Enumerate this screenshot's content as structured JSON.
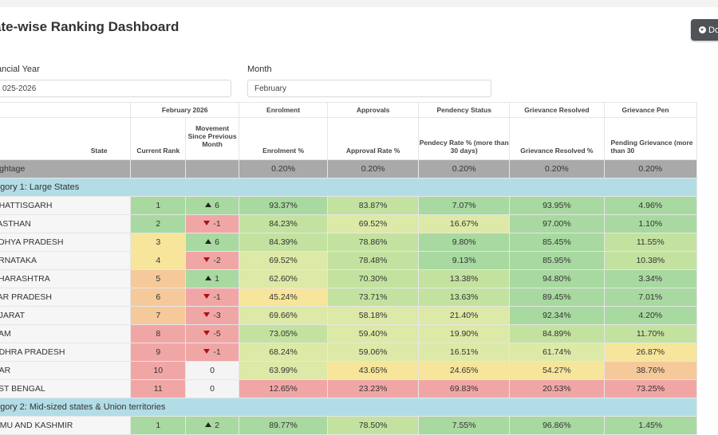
{
  "page": {
    "title": "ate-wise Ranking Dashboard",
    "download_label": "Do"
  },
  "filters": {
    "financial_year": {
      "label": "ancial Year",
      "value": "025-2026"
    },
    "month": {
      "label": "Month",
      "value": "February"
    }
  },
  "table": {
    "group_headers": [
      "February 2026",
      "Enrolment",
      "Approvals",
      "Pendency Status",
      "Grievance Resolved",
      "Grievance Pen"
    ],
    "columns": [
      "State",
      "Current Rank",
      "Movement Since Previous Month",
      "Enrolment %",
      "Approval Rate %",
      "Pendecy Rate % (more than 30 days)",
      "Grievance Resolved %",
      "Pending Grievance (more than 30"
    ],
    "weightage": {
      "label": "eightage",
      "values": [
        "0.20%",
        "0.20%",
        "0.20%",
        "0.20%",
        "0.20%"
      ]
    },
    "categories": [
      {
        "label": "tegory 1: Large States",
        "rows": [
          {
            "state": "HHATTISGARH",
            "rank": "1",
            "move": "6",
            "dir": "up",
            "enrol": "93.37%",
            "approval": "83.87%",
            "pendency": "7.07%",
            "griev": "93.95%",
            "pending": "4.96%"
          },
          {
            "state": "JASTHAN",
            "rank": "2",
            "move": "-1",
            "dir": "down",
            "enrol": "84.23%",
            "approval": "69.52%",
            "pendency": "16.67%",
            "griev": "97.00%",
            "pending": "1.10%"
          },
          {
            "state": "ADHYA PRADESH",
            "rank": "3",
            "move": "6",
            "dir": "up",
            "enrol": "84.39%",
            "approval": "78.86%",
            "pendency": "9.80%",
            "griev": "85.45%",
            "pending": "11.55%"
          },
          {
            "state": "ARNATAKA",
            "rank": "4",
            "move": "-2",
            "dir": "down",
            "enrol": "69.52%",
            "approval": "78.48%",
            "pendency": "9.13%",
            "griev": "85.95%",
            "pending": "10.38%"
          },
          {
            "state": "AHARASHTRA",
            "rank": "5",
            "move": "1",
            "dir": "up",
            "enrol": "62.60%",
            "approval": "70.30%",
            "pendency": "13.38%",
            "griev": "94.80%",
            "pending": "3.34%"
          },
          {
            "state": "TAR PRADESH",
            "rank": "6",
            "move": "-1",
            "dir": "down",
            "enrol": "45.24%",
            "approval": "73.71%",
            "pendency": "13.63%",
            "griev": "89.45%",
            "pending": "7.01%"
          },
          {
            "state": "UJARAT",
            "rank": "7",
            "move": "-3",
            "dir": "down",
            "enrol": "69.66%",
            "approval": "58.18%",
            "pendency": "21.40%",
            "griev": "92.34%",
            "pending": "4.20%"
          },
          {
            "state": "SAM",
            "rank": "8",
            "move": "-5",
            "dir": "down",
            "enrol": "73.05%",
            "approval": "59.40%",
            "pendency": "19.90%",
            "griev": "84.89%",
            "pending": "11.70%"
          },
          {
            "state": "NDHRA PRADESH",
            "rank": "9",
            "move": "-1",
            "dir": "down",
            "enrol": "68.24%",
            "approval": "59.06%",
            "pendency": "16.51%",
            "griev": "61.74%",
            "pending": "26.87%"
          },
          {
            "state": "HAR",
            "rank": "10",
            "move": "0",
            "dir": "none",
            "enrol": "63.99%",
            "approval": "43.65%",
            "pendency": "24.65%",
            "griev": "54.27%",
            "pending": "38.76%"
          },
          {
            "state": "EST BENGAL",
            "rank": "11",
            "move": "0",
            "dir": "none",
            "enrol": "12.65%",
            "approval": "23.23%",
            "pendency": "69.83%",
            "griev": "20.53%",
            "pending": "73.25%"
          }
        ]
      },
      {
        "label": "tegory 2: Mid-sized states & Union territories",
        "rows": [
          {
            "state": "MMU AND KASHMIR",
            "rank": "1",
            "move": "2",
            "dir": "up",
            "enrol": "89.77%",
            "approval": "78.50%",
            "pendency": "7.55%",
            "griev": "96.86%",
            "pending": "1.45%"
          }
        ]
      }
    ],
    "colors": {
      "green": "#a8d9a0",
      "light_green": "#c3e2a0",
      "yellow_green": "#dde9a6",
      "yellow": "#f6e59a",
      "orange": "#f5c99a",
      "red": "#f1a6a6",
      "neutral": "#f4f4f4"
    }
  }
}
